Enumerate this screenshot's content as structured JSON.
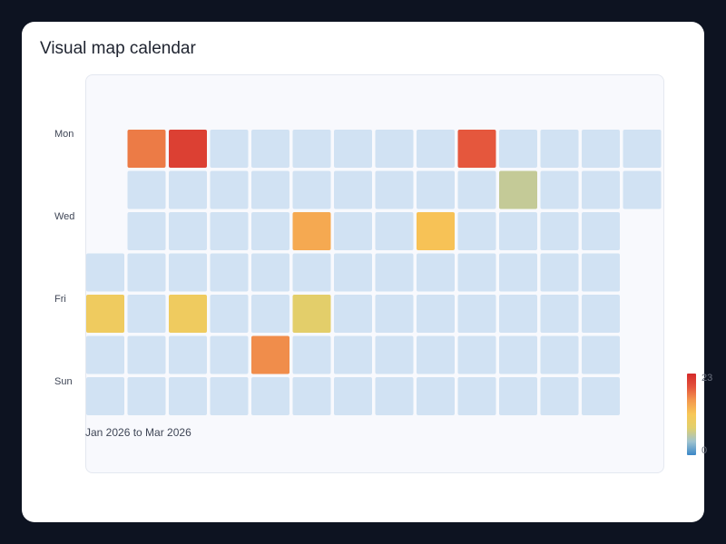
{
  "title": "Visual map calendar",
  "chart_data": {
    "type": "heatmap",
    "title": "Visual map calendar",
    "range_label": "Jan 2026 to Mar 2026",
    "start_date": "2026-01-01",
    "end_date": "2026-03-31",
    "day_labels": [
      "Mon",
      "Wed",
      "Fri",
      "Sun"
    ],
    "visual_map": {
      "min": 0,
      "max": 23,
      "min_label": "0",
      "max_label": "23",
      "colors": [
        "#3a87c8",
        "#9fc3cf",
        "#e1cf6c",
        "#f8c857",
        "#f3994e",
        "#e4543c",
        "#d42a2a"
      ]
    },
    "empty_color": "#d1e2f3",
    "values": [
      {
        "date": "2026-01-02",
        "value": 10
      },
      {
        "date": "2026-01-05",
        "value": 17
      },
      {
        "date": "2026-01-12",
        "value": 21
      },
      {
        "date": "2026-01-16",
        "value": 10
      },
      {
        "date": "2026-01-31",
        "value": 16
      },
      {
        "date": "2026-02-04",
        "value": 14
      },
      {
        "date": "2026-02-06",
        "value": 8
      },
      {
        "date": "2026-02-25",
        "value": 12
      },
      {
        "date": "2026-03-02",
        "value": 19
      },
      {
        "date": "2026-03-10",
        "value": 6
      }
    ]
  }
}
